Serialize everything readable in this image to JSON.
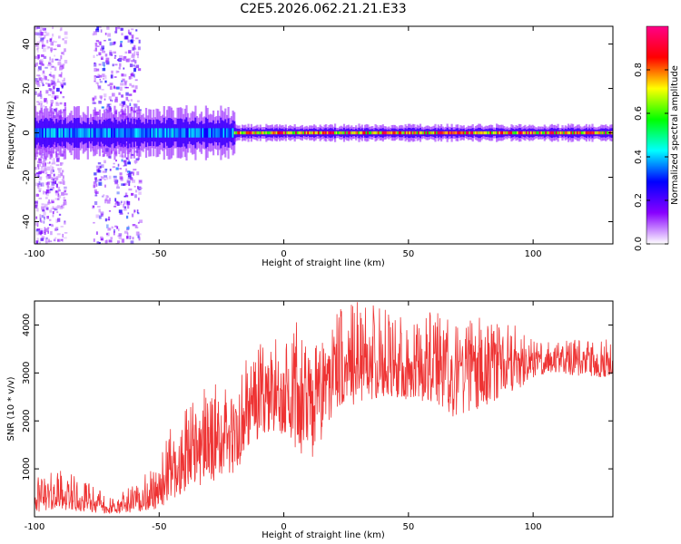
{
  "title": "C2E5.2026.062.21.21.E33",
  "chart_data": [
    {
      "type": "heatmap",
      "name": "spectrogram",
      "xlabel": "Height of straight line (km)",
      "ylabel": "Frequency (Hz)",
      "xlim": [
        -100,
        132
      ],
      "ylim": [
        -50,
        48
      ],
      "xticks": [
        -100,
        -50,
        0,
        50,
        100
      ],
      "yticks": [
        -40,
        -20,
        0,
        20,
        40
      ],
      "colorbar": {
        "label": "Normalized spectral amplitude",
        "range": [
          0,
          1
        ],
        "ticks": [
          0.0,
          0.2,
          0.4,
          0.6,
          0.8
        ],
        "tick_labels": [
          "0.0",
          "0.2",
          "0.4",
          "0.6",
          "0.8"
        ],
        "colors": [
          "#ffffff",
          "#8800ff",
          "#0000ff",
          "#00ffff",
          "#00ff00",
          "#ffff00",
          "#ff0000",
          "#ff0088"
        ]
      },
      "bands": [
        {
          "x": [
            -100,
            -20
          ],
          "freq_center": 0,
          "freq_halfwidth": 6,
          "peak": 0.45
        },
        {
          "x": [
            -20,
            132
          ],
          "freq_center": 0,
          "freq_halfwidth": 2,
          "peak": 0.95
        }
      ],
      "noise_columns": [
        {
          "x": [
            -100,
            -88
          ],
          "freq_range": [
            -50,
            48
          ],
          "level": 0.25
        },
        {
          "x": [
            -77,
            -58
          ],
          "freq_range": [
            -50,
            48
          ],
          "level": 0.35
        }
      ]
    },
    {
      "type": "line",
      "name": "snr",
      "xlabel": "Height of straight line (km)",
      "ylabel": "SNR (10 * v/v)",
      "xlim": [
        -100,
        132
      ],
      "ylim": [
        0,
        4500
      ],
      "xticks": [
        -100,
        -50,
        0,
        50,
        100
      ],
      "yticks": [
        1000,
        2000,
        3000,
        4000
      ],
      "color": "#ee3333",
      "envelope": {
        "x": [
          -100,
          -90,
          -80,
          -70,
          -60,
          -50,
          -45,
          -40,
          -30,
          -20,
          -15,
          -10,
          -5,
          0,
          5,
          10,
          15,
          20,
          30,
          40,
          50,
          60,
          70,
          80,
          90,
          100,
          110,
          120,
          132
        ],
        "low": [
          100,
          150,
          100,
          50,
          100,
          150,
          300,
          500,
          700,
          900,
          1300,
          1600,
          1800,
          1700,
          1300,
          1100,
          1500,
          2100,
          2400,
          2500,
          2400,
          2400,
          2000,
          2300,
          2500,
          2900,
          3000,
          2900,
          2900
        ],
        "mean": [
          380,
          450,
          300,
          180,
          240,
          500,
          900,
          1300,
          1700,
          1700,
          2300,
          2500,
          2600,
          2650,
          2800,
          2500,
          2750,
          3100,
          3200,
          3150,
          3100,
          3300,
          3100,
          3350,
          3250,
          3300,
          3250,
          3250,
          3250
        ],
        "high": [
          800,
          1000,
          800,
          400,
          700,
          1200,
          1900,
          2200,
          2800,
          2700,
          3300,
          3600,
          3700,
          3800,
          4200,
          3500,
          3700,
          4300,
          4500,
          4500,
          4200,
          4300,
          4000,
          4200,
          4100,
          3700,
          3700,
          3700,
          3800
        ]
      }
    }
  ]
}
